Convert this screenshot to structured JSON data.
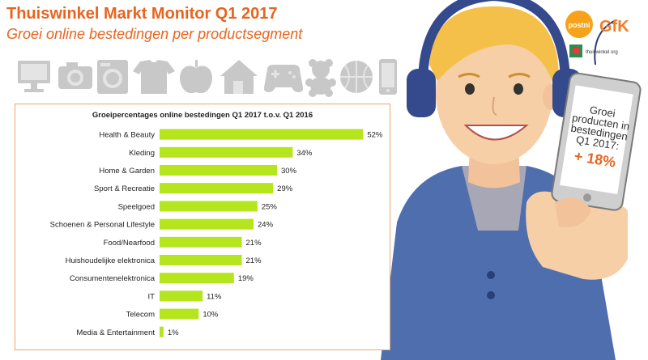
{
  "header": {
    "title": "Thuiswinkel Markt Monitor Q1 2017",
    "subtitle": "Groei online bestedingen per productsegment"
  },
  "icons": [
    "computer-icon",
    "camera-icon",
    "washing-machine-icon",
    "tshirt-icon",
    "apple-icon",
    "house-icon",
    "gamepad-icon",
    "teddy-bear-icon",
    "basketball-icon",
    "smartphone-icon"
  ],
  "logos": {
    "postnl": "postnl",
    "gfk": "GfK",
    "thuiswinkel": "thuiswinkel org"
  },
  "phone": {
    "line1": "Groei",
    "line2": "producten in",
    "line3": "bestedingen",
    "line4": "Q1 2017:",
    "value": "+ 18%"
  },
  "colors": {
    "accent": "#e8641e",
    "bar": "#b5e51d",
    "headphones": "#344a8c",
    "shirt": "#4f6eae",
    "skin": "#f7cfa6",
    "hair": "#f5c04a"
  },
  "chart_data": {
    "type": "bar",
    "orientation": "horizontal",
    "title": "Groeipercentages online bestedingen Q1 2017 t.o.v. Q1 2016",
    "categories": [
      "Health & Beauty",
      "Kleding",
      "Home & Garden",
      "Sport & Recreatie",
      "Speelgoed",
      "Schoenen & Personal Lifestyle",
      "Food/Nearfood",
      "Huishoudelijke elektronica",
      "Consumentenelektronica",
      "IT",
      "Telecom",
      "Media & Entertainment"
    ],
    "values": [
      52,
      34,
      30,
      29,
      25,
      24,
      21,
      21,
      19,
      11,
      10,
      1
    ],
    "labels": [
      "52%",
      "34%",
      "30%",
      "29%",
      "25%",
      "24%",
      "21%",
      "21%",
      "19%",
      "11%",
      "10%",
      "1%"
    ],
    "xlim": [
      0,
      60
    ],
    "xlabel": "",
    "ylabel": "",
    "grid": false
  }
}
